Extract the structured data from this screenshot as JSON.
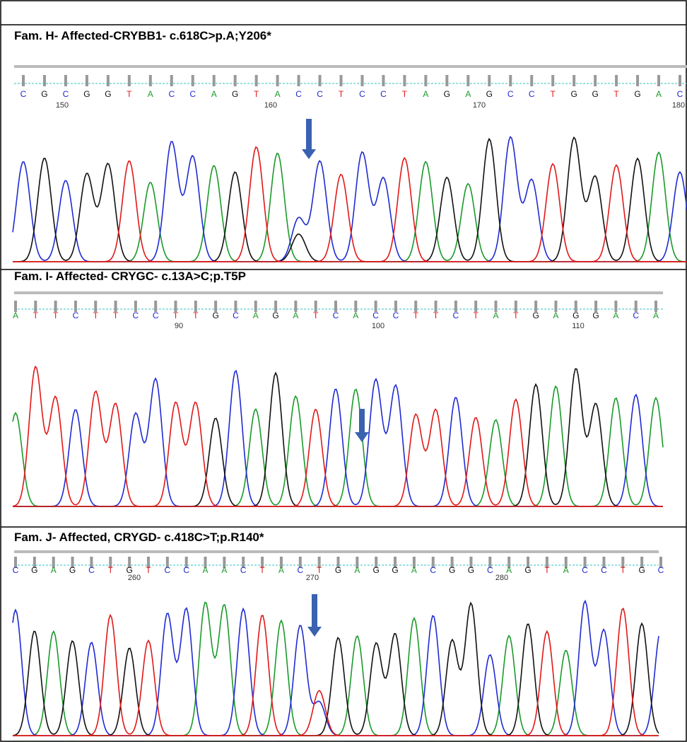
{
  "panels": [
    {
      "title": "Fam. H- Affected-CRYBB1- c.618C>p.A;Y206*",
      "bases": [
        "C",
        "G",
        "C",
        "G",
        "G",
        "T",
        "A",
        "C",
        "C",
        "A",
        "G",
        "T",
        "A",
        "C",
        "C",
        "T",
        "C",
        "C",
        "T",
        "A",
        "G",
        "A",
        "G",
        "C",
        "C",
        "T",
        "G",
        "G",
        "T",
        "G",
        "A",
        "C"
      ],
      "positions": [
        "150",
        "160",
        "170",
        "180"
      ]
    },
    {
      "title": "Fam. I- Affected- CRYGC- c.13A>C;p.T5P",
      "bases": [
        "A",
        "T",
        "T",
        "C",
        "T",
        "T",
        "C",
        "C",
        "T",
        "T",
        "G",
        "C",
        "A",
        "G",
        "A",
        "T",
        "C",
        "A",
        "C",
        "C",
        "T",
        "T",
        "C",
        "T",
        "A",
        "T",
        "G",
        "A",
        "G",
        "G",
        "A",
        "C",
        "A"
      ],
      "positions": [
        "90",
        "100",
        "110"
      ]
    },
    {
      "title": "Fam. J- Affected, CRYGD- c.418C>T;p.R140*",
      "bases": [
        "C",
        "G",
        "A",
        "G",
        "C",
        "T",
        "G",
        "T",
        "C",
        "C",
        "A",
        "A",
        "C",
        "T",
        "A",
        "C",
        "T",
        "G",
        "A",
        "G",
        "G",
        "A",
        "C",
        "G",
        "G",
        "C",
        "A",
        "G",
        "T",
        "A",
        "C",
        "C",
        "T",
        "G",
        "C"
      ],
      "positions": [
        "260",
        "270",
        "280"
      ]
    }
  ]
}
